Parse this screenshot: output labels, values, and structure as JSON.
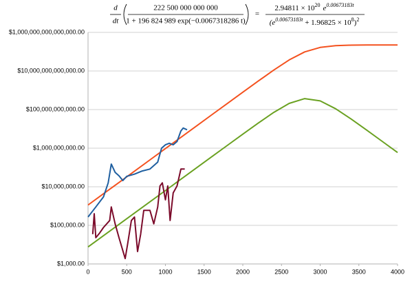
{
  "formula": {
    "d": "d",
    "dt": "dt",
    "lhs_numerator": "222 500 000 000 000",
    "lhs_denominator": "1 + 196 824 989 exp(−0.0067318286 t)",
    "equals": "=",
    "rhs_numerator_coef": "2.94811 × 10",
    "rhs_numerator_pow": "20",
    "rhs_numerator_e": "e",
    "rhs_numerator_exp": "0.00673183t",
    "rhs_denominator_open": "(e",
    "rhs_denominator_exp": "0.00673183t",
    "rhs_denominator_rest": " + 1.96825 × 10",
    "rhs_denominator_pow": "8",
    "rhs_denominator_close": ")",
    "rhs_denominator_sq": "2"
  },
  "chart_data": {
    "type": "line",
    "log_y": true,
    "grid": true,
    "xlim": [
      0,
      4000
    ],
    "xticks": [
      0,
      500,
      1000,
      1500,
      2000,
      2500,
      3000,
      3500,
      4000
    ],
    "ylim": [
      1000,
      1000000000000000
    ],
    "yticks": [
      {
        "value": 1000,
        "label": "$1,000.00"
      },
      {
        "value": 100000,
        "label": "$100,000.00"
      },
      {
        "value": 10000000,
        "label": "$10,000,000.00"
      },
      {
        "value": 1000000000,
        "label": "$1,000,000,000.00"
      },
      {
        "value": 100000000000,
        "label": "$100,000,000,000.00"
      },
      {
        "value": 10000000000000,
        "label": "$10,000,000,000,000.00"
      },
      {
        "value": 1000000000000000,
        "label": "$1,000,000,000,000,000.00"
      }
    ],
    "series": [
      {
        "color": "#f4511e",
        "x": [
          0,
          200,
          400,
          600,
          800,
          1000,
          1200,
          1400,
          1600,
          1800,
          2000,
          2200,
          2400,
          2600,
          2800,
          3000,
          3200,
          3400,
          3600,
          3800,
          4000
        ],
        "values": [
          1130500,
          4345000,
          16702000,
          64194000,
          246740000,
          948350000,
          3645100000,
          14010000000,
          53839000000,
          206800000000,
          792730000000,
          3016400000000,
          11163000000000,
          37531000000000,
          97488000000000,
          166840000000000,
          204730000000000,
          217590000000000,
          221200000000000,
          222160000000000,
          222412000000000
        ]
      },
      {
        "color": "#6aa121",
        "x": [
          0,
          200,
          400,
          600,
          800,
          1000,
          1200,
          1400,
          1600,
          1800,
          2000,
          2200,
          2400,
          2600,
          2800,
          3000,
          3200,
          3400,
          3600,
          3800,
          4000
        ],
        "values": [
          7611,
          29250,
          112430,
          432140,
          1661000,
          6384000,
          24538000,
          94300000,
          362400000,
          1390900000,
          5317600000,
          20031000000,
          71377000000,
          210040000000,
          368730000000,
          280970000000,
          110080000000,
          32349000000,
          8699000000,
          2283000000,
          595300000
        ]
      },
      {
        "color": "#1f5fa0",
        "x": [
          0,
          100,
          200,
          260,
          300,
          350,
          400,
          450,
          500,
          600,
          700,
          800,
          900,
          950,
          1000,
          1050,
          1100,
          1150,
          1200,
          1230,
          1280
        ],
        "values": [
          270000,
          900000,
          3000000,
          16000000,
          150000000,
          56000000,
          37000000,
          21000000,
          35000000,
          45000000,
          66000000,
          83000000,
          190000000,
          1000000000,
          1500000000,
          1800000000,
          1500000000,
          2200000000,
          7800000000,
          11000000000,
          9000000000
        ]
      },
      {
        "color": "#7b0a2a",
        "x": [
          60,
          80,
          100,
          150,
          200,
          280,
          300,
          350,
          400,
          480,
          510,
          560,
          600,
          640,
          680,
          720,
          800,
          850,
          900,
          930,
          960,
          1000,
          1030,
          1060,
          1100,
          1150,
          1200,
          1250
        ],
        "values": [
          35000,
          400000,
          23000,
          40000,
          78000,
          180000,
          900000,
          120000,
          23000,
          1900,
          10000,
          180000,
          270000,
          4400,
          35000,
          600000,
          600000,
          120000,
          900000,
          11000000,
          16000000,
          2100000,
          11000000,
          180000,
          4800000,
          11000000,
          83000000,
          83000000
        ]
      }
    ]
  }
}
